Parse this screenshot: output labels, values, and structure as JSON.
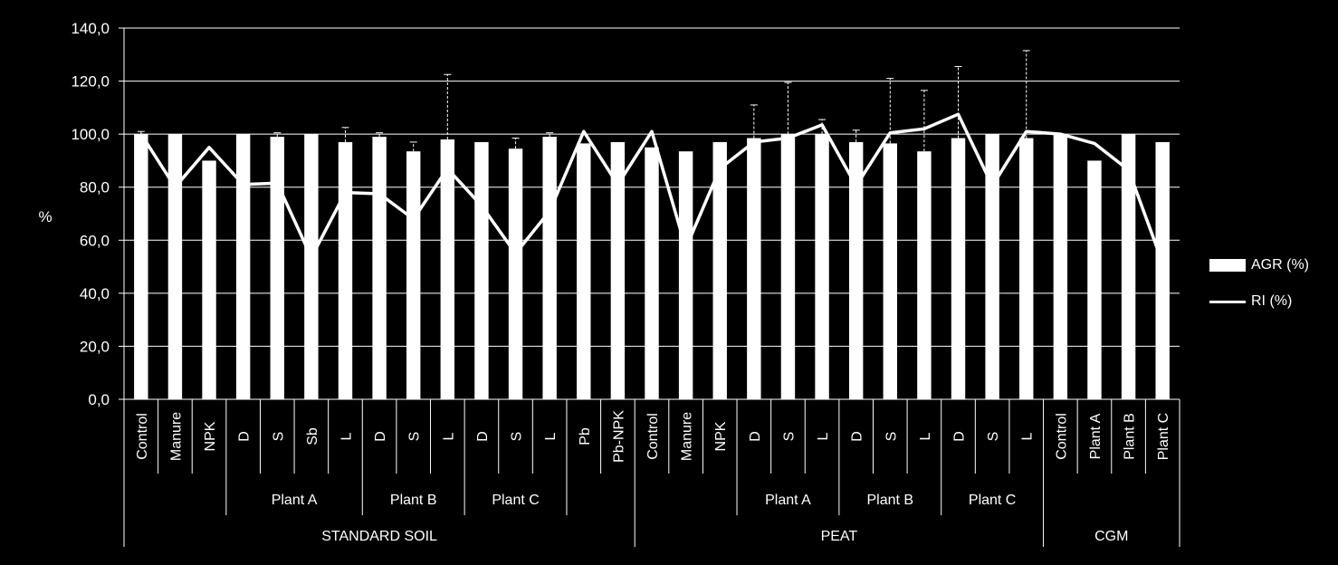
{
  "chart_data": {
    "type": "bar",
    "ylabel": "%",
    "ylim": [
      0,
      140
    ],
    "yticks": [
      "0,0",
      "20,0",
      "40,0",
      "60,0",
      "80,0",
      "100,0",
      "120,0",
      "140,0"
    ],
    "grid": true,
    "legend_position": "right",
    "categories": [
      "Control",
      "Manure",
      "NPK",
      "D",
      "S",
      "Sb",
      "L",
      "D",
      "S",
      "L",
      "D",
      "S",
      "L",
      "Pb",
      "Pb-NPK",
      "Control",
      "Manure",
      "NPK",
      "D",
      "S",
      "L",
      "D",
      "S",
      "L",
      "D",
      "S",
      "L",
      "Control",
      "Plant A",
      "Plant B",
      "Plant C"
    ],
    "group_level1": [
      {
        "label": "Plant A",
        "start": 3,
        "end": 6
      },
      {
        "label": "Plant B",
        "start": 7,
        "end": 9
      },
      {
        "label": "Plant C",
        "start": 10,
        "end": 12
      },
      {
        "label": "Plant A",
        "start": 18,
        "end": 20
      },
      {
        "label": "Plant B",
        "start": 21,
        "end": 23
      },
      {
        "label": "Plant C",
        "start": 24,
        "end": 26
      }
    ],
    "group_level2": [
      {
        "label": "STANDARD SOIL",
        "start": 0,
        "end": 14
      },
      {
        "label": "PEAT",
        "start": 15,
        "end": 26
      },
      {
        "label": "CGM",
        "start": 27,
        "end": 30
      }
    ],
    "series": [
      {
        "name": "AGR (%)",
        "type": "bar",
        "values": [
          100,
          100,
          90,
          100,
          99,
          100,
          97,
          99,
          93.5,
          98,
          97,
          94.5,
          99,
          96.5,
          97,
          95,
          93.5,
          97,
          98.5,
          100,
          100,
          97,
          96.5,
          93.5,
          98.5,
          100,
          98.5,
          100,
          90,
          100,
          97
        ],
        "errors": [
          1,
          0,
          0,
          0,
          1.5,
          0,
          5.5,
          1.5,
          3.5,
          24.5,
          0,
          4,
          1.5,
          0,
          0,
          0,
          0,
          0,
          12.5,
          19.5,
          5.5,
          4.5,
          24.5,
          23,
          27,
          0,
          33,
          0,
          0,
          0,
          0
        ]
      },
      {
        "name": "RI (%)",
        "type": "line",
        "values": [
          100,
          80,
          95,
          81,
          81.5,
          53.5,
          78,
          77.5,
          68,
          87,
          73,
          55,
          71,
          101,
          81,
          101,
          57,
          87,
          97,
          98.5,
          103.5,
          80.5,
          100.5,
          102,
          107.5,
          80.5,
          101,
          100,
          96.5,
          86.5,
          51.5
        ]
      }
    ]
  }
}
